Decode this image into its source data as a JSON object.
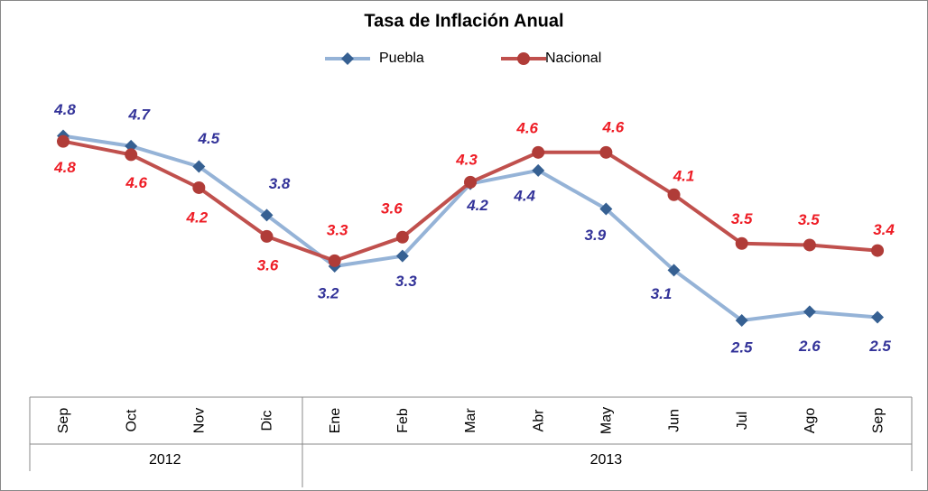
{
  "chart_data": {
    "type": "line",
    "title": "Tasa de Inflación Anual",
    "year_groups": [
      {
        "name": "2012",
        "categories": [
          "Sep",
          "Oct",
          "Nov",
          "Dic"
        ]
      },
      {
        "name": "2013",
        "categories": [
          "Ene",
          "Feb",
          "Mar",
          "Abr",
          "May",
          "Jun",
          "Jul",
          "Ago",
          "Sep"
        ]
      }
    ],
    "series": [
      {
        "name": "Puebla",
        "color": "#95b3d7",
        "marker_color": "#366092",
        "label_color": "#333399",
        "marker": "diamond",
        "values": [
          4.85,
          4.72,
          4.46,
          3.84,
          3.19,
          3.32,
          4.24,
          4.41,
          3.92,
          3.14,
          2.5,
          2.61,
          2.54
        ],
        "value_labels": [
          "4.8",
          "4.7",
          "4.5",
          "3.8",
          "3.2",
          "3.3",
          "4.2",
          "4.4",
          "3.9",
          "3.1",
          "2.5",
          "2.6",
          "2.5"
        ]
      },
      {
        "name": "Nacional",
        "color": "#c0504d",
        "marker_color": "#b03c38",
        "label_color": "#ee1c25",
        "marker": "circle",
        "values": [
          4.78,
          4.61,
          4.19,
          3.57,
          3.26,
          3.56,
          4.26,
          4.64,
          4.64,
          4.1,
          3.48,
          3.46,
          3.39
        ],
        "value_labels": [
          "4.8",
          "4.6",
          "4.2",
          "3.6",
          "3.3",
          "3.6",
          "4.3",
          "4.6",
          "4.6",
          "4.1",
          "3.5",
          "3.5",
          "3.4"
        ]
      }
    ],
    "ylim": [
      1.5,
      5.5
    ]
  }
}
